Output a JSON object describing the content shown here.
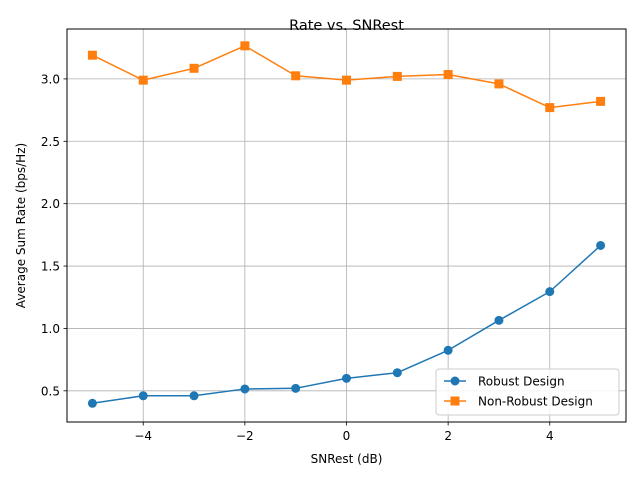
{
  "chart_data": {
    "type": "line",
    "title": "Rate vs. SNRest",
    "xlabel": "SNRest (dB)",
    "ylabel": "Average Sum Rate (bps/Hz)",
    "x": [
      -5,
      -4,
      -3,
      -2,
      -1,
      0,
      1,
      2,
      3,
      4,
      5
    ],
    "xlim": [
      -5.5,
      5.5
    ],
    "ylim": [
      0.25,
      3.4
    ],
    "x_ticks": [
      -4,
      -2,
      0,
      2,
      4
    ],
    "x_tick_labels": [
      "−4",
      "−2",
      "0",
      "2",
      "4"
    ],
    "y_ticks": [
      0.5,
      1.0,
      1.5,
      2.0,
      2.5,
      3.0
    ],
    "y_tick_labels": [
      "0.5",
      "1.0",
      "1.5",
      "2.0",
      "2.5",
      "3.0"
    ],
    "grid": true,
    "legend_position": "lower right",
    "series": [
      {
        "name": "Robust Design",
        "color": "#1f77b4",
        "marker": "circle",
        "values": [
          0.4,
          0.46,
          0.46,
          0.515,
          0.52,
          0.6,
          0.645,
          0.825,
          1.065,
          1.295,
          1.665
        ]
      },
      {
        "name": "Non-Robust Design",
        "color": "#ff7f0e",
        "marker": "square",
        "values": [
          3.19,
          2.99,
          3.085,
          3.265,
          3.025,
          2.99,
          3.02,
          3.035,
          2.96,
          2.77,
          2.82
        ]
      }
    ]
  }
}
